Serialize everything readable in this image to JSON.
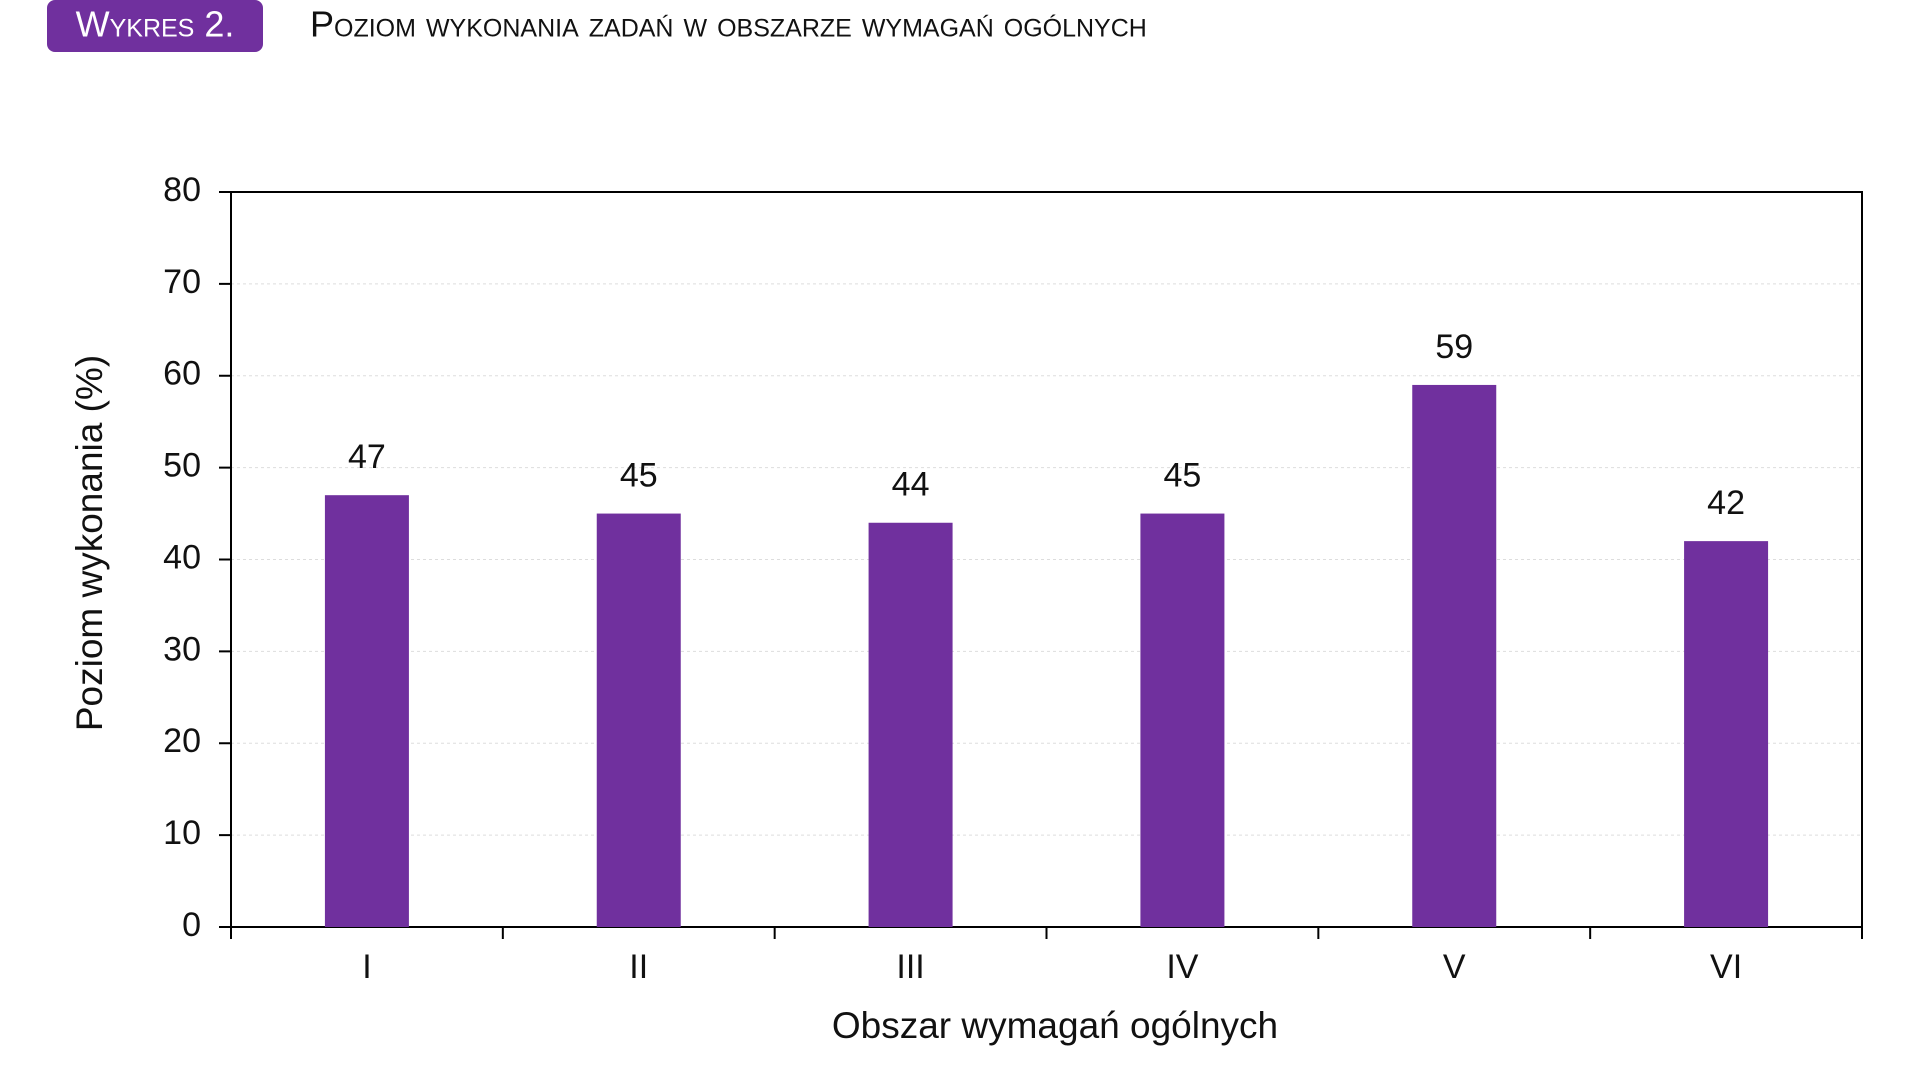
{
  "chart_data": {
    "type": "bar",
    "badge": "Wykres 2.",
    "title": "Poziom wykonania zadań w obszarze wymagań ogólnych",
    "x_label": "Obszar wymagań ogólnych",
    "y_label": "Poziom wykonania (%)",
    "categories": [
      "I",
      "II",
      "III",
      "IV",
      "V",
      "VI"
    ],
    "values": [
      47,
      45,
      44,
      45,
      59,
      42
    ],
    "color": "#70309e",
    "ylim": [
      0,
      80
    ],
    "yticks": [
      0,
      10,
      20,
      30,
      40,
      50,
      60,
      70,
      80
    ],
    "grid": true
  }
}
